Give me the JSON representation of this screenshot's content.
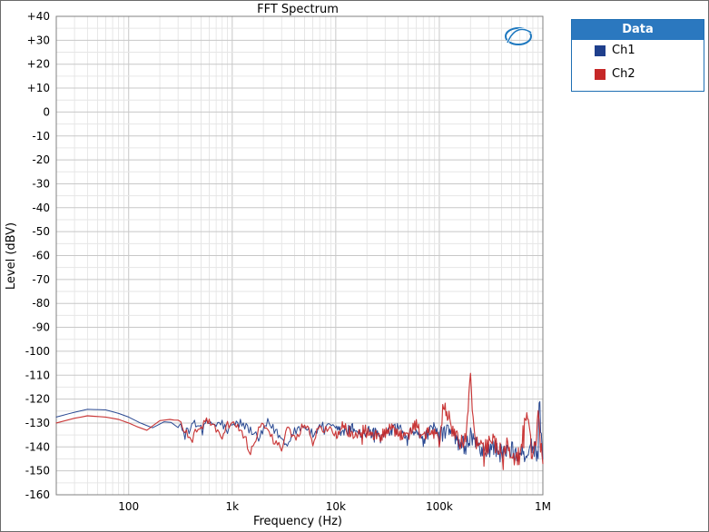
{
  "chart_data": {
    "type": "line",
    "title": "FFT Spectrum",
    "xlabel": "Frequency (Hz)",
    "ylabel": "Level (dBV)",
    "x_scale": "log",
    "xlim": [
      20,
      1000000
    ],
    "ylim": [
      -160,
      40
    ],
    "grid": true,
    "legend": {
      "title": "Data",
      "placement": "right"
    },
    "x_ticks": [
      {
        "value": 100,
        "label": "100"
      },
      {
        "value": 1000,
        "label": "1k"
      },
      {
        "value": 10000,
        "label": "10k"
      },
      {
        "value": 100000,
        "label": "100k"
      },
      {
        "value": 1000000,
        "label": "1M"
      }
    ],
    "y_ticks": [
      {
        "value": 40,
        "label": "+40"
      },
      {
        "value": 30,
        "label": "+30"
      },
      {
        "value": 20,
        "label": "+20"
      },
      {
        "value": 10,
        "label": "+10"
      },
      {
        "value": 0,
        "label": "0"
      },
      {
        "value": -10,
        "label": "-10"
      },
      {
        "value": -20,
        "label": "-20"
      },
      {
        "value": -30,
        "label": "-30"
      },
      {
        "value": -40,
        "label": "-40"
      },
      {
        "value": -50,
        "label": "-50"
      },
      {
        "value": -60,
        "label": "-60"
      },
      {
        "value": -70,
        "label": "-70"
      },
      {
        "value": -80,
        "label": "-80"
      },
      {
        "value": -90,
        "label": "-90"
      },
      {
        "value": -100,
        "label": "-100"
      },
      {
        "value": -110,
        "label": "-110"
      },
      {
        "value": -120,
        "label": "-120"
      },
      {
        "value": -130,
        "label": "-130"
      },
      {
        "value": -140,
        "label": "-140"
      },
      {
        "value": -150,
        "label": "-150"
      },
      {
        "value": -160,
        "label": "-160"
      }
    ],
    "series": [
      {
        "name": "Ch1",
        "color": "#1f3f8c",
        "x": [
          20,
          30,
          40,
          60,
          80,
          100,
          130,
          170,
          220,
          300,
          350,
          420,
          500,
          600,
          700,
          800,
          900,
          1000,
          1200,
          1500,
          1800,
          2200,
          2700,
          3300,
          4000,
          5000,
          6000,
          7000,
          8000,
          10000,
          12000,
          15000,
          18000,
          22000,
          27000,
          33000,
          40000,
          50000,
          60000,
          70000,
          80000,
          90000,
          100000,
          120000,
          150000,
          180000,
          200000,
          220000,
          270000,
          330000,
          400000,
          500000,
          600000,
          700000,
          800000,
          900000,
          920000,
          1000000
        ],
        "y": [
          -127.5,
          -125.5,
          -124.3,
          -124.5,
          -126.0,
          -127.5,
          -130.0,
          -132.0,
          -129.5,
          -130.0,
          -135.0,
          -129.0,
          -132.0,
          -129.5,
          -131.0,
          -130.0,
          -134.0,
          -131.0,
          -130.0,
          -133.0,
          -137.0,
          -130.0,
          -134.0,
          -139.0,
          -133.0,
          -131.0,
          -135.0,
          -132.0,
          -131.0,
          -133.0,
          -134.0,
          -132.0,
          -135.0,
          -133.0,
          -136.0,
          -134.0,
          -132.0,
          -135.0,
          -133.0,
          -137.0,
          -134.0,
          -132.0,
          -136.0,
          -133.0,
          -138.0,
          -140.0,
          -135.0,
          -138.0,
          -142.0,
          -140.0,
          -143.0,
          -141.0,
          -144.0,
          -142.0,
          -140.0,
          -143.0,
          -120.0,
          -145.0
        ]
      },
      {
        "name": "Ch2",
        "color": "#c62828",
        "x": [
          20,
          30,
          40,
          60,
          80,
          100,
          120,
          150,
          200,
          250,
          300,
          350,
          400,
          500,
          600,
          700,
          800,
          900,
          1000,
          1200,
          1500,
          1800,
          2000,
          2500,
          3000,
          3500,
          4000,
          5000,
          6000,
          7000,
          8000,
          10000,
          12000,
          15000,
          18000,
          22000,
          27000,
          33000,
          40000,
          50000,
          60000,
          70000,
          80000,
          90000,
          100000,
          110000,
          150000,
          180000,
          200000,
          220000,
          270000,
          330000,
          400000,
          450000,
          500000,
          550000,
          600000,
          700000,
          800000,
          900000,
          1000000
        ],
        "y": [
          -130.0,
          -128.0,
          -127.0,
          -127.5,
          -128.5,
          -130.0,
          -131.5,
          -133.0,
          -129.0,
          -128.5,
          -129.0,
          -133.0,
          -136.0,
          -131.0,
          -129.0,
          -133.0,
          -137.0,
          -131.0,
          -130.0,
          -132.0,
          -142.0,
          -133.0,
          -131.0,
          -137.0,
          -140.0,
          -132.0,
          -137.0,
          -130.0,
          -136.0,
          -133.0,
          -132.0,
          -135.0,
          -131.0,
          -136.0,
          -133.0,
          -134.0,
          -136.0,
          -132.0,
          -135.0,
          -134.0,
          -131.0,
          -136.0,
          -133.0,
          -135.0,
          -137.0,
          -122.0,
          -138.0,
          -136.0,
          -112.0,
          -139.0,
          -141.0,
          -138.0,
          -143.0,
          -140.0,
          -141.0,
          -146.0,
          -143.0,
          -125.0,
          -146.0,
          -128.0,
          -147.0
        ]
      }
    ]
  }
}
